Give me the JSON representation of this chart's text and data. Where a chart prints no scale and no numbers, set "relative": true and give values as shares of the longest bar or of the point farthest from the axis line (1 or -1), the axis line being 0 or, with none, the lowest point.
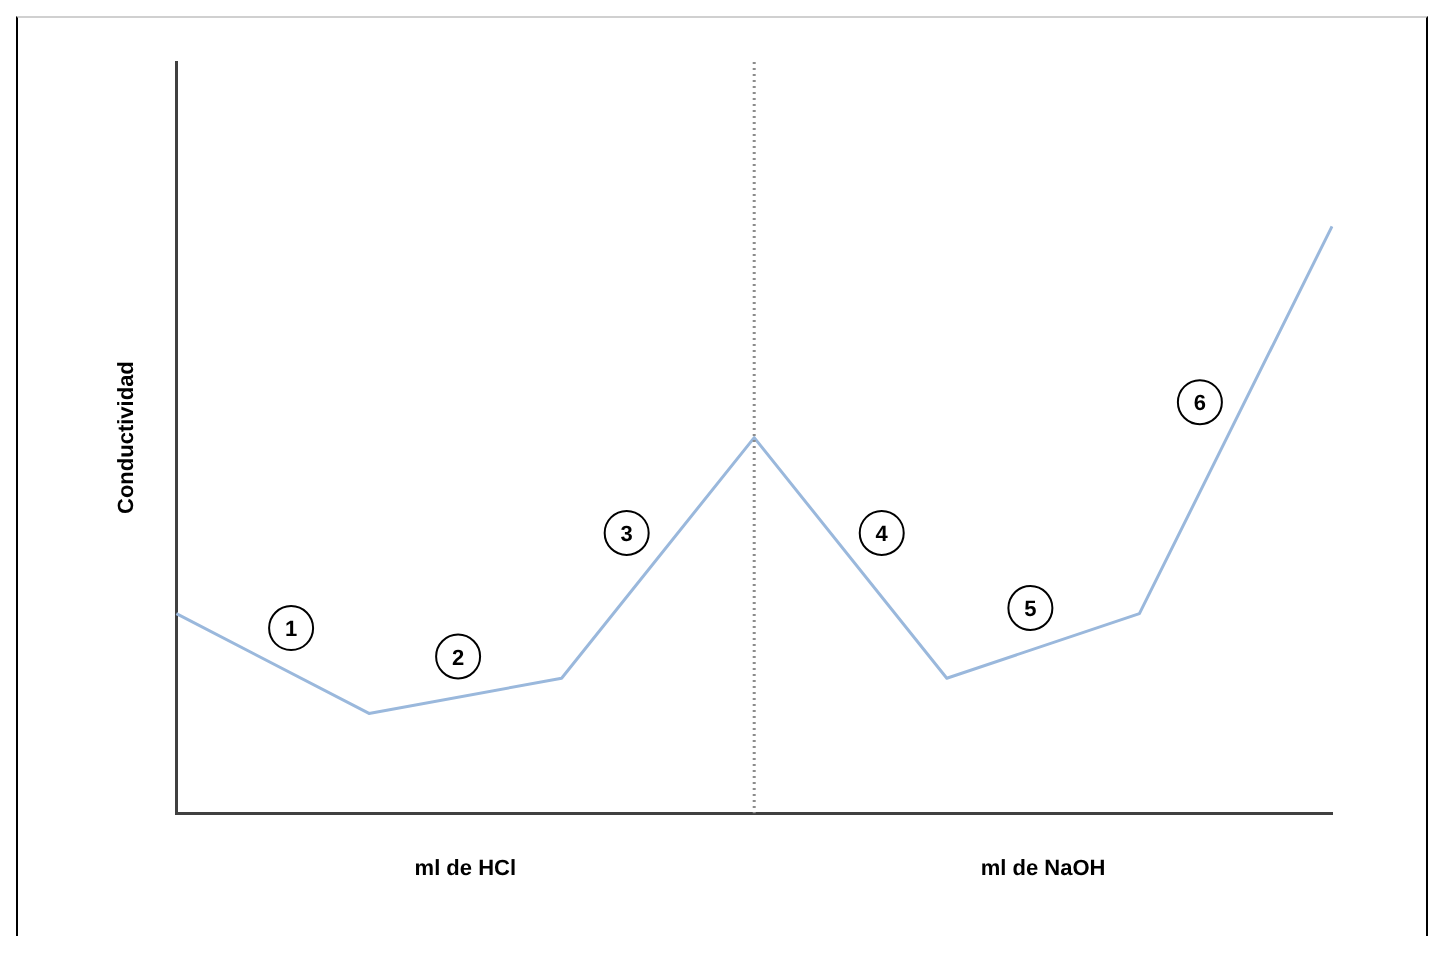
{
  "chart_data": {
    "type": "line",
    "relative": true,
    "ylabel": "Conductividad",
    "categories": [
      null,
      null,
      null,
      null,
      null,
      null,
      null
    ],
    "series": [
      {
        "color": "#9ab8dc",
        "values": [
          0.34,
          0.17,
          0.23,
          0.64,
          0.23,
          0.34,
          1
        ]
      }
    ],
    "ref_lines": [
      {
        "axis": "x",
        "color": "#8c8c8c",
        "line_style": "dotted"
      }
    ],
    "annotations": [
      "ml de HCl",
      "ml de NaOH",
      "1",
      "2",
      "3",
      "4",
      "5",
      "6"
    ],
    "legend": false,
    "marker": "none",
    "line_style": "solid"
  }
}
